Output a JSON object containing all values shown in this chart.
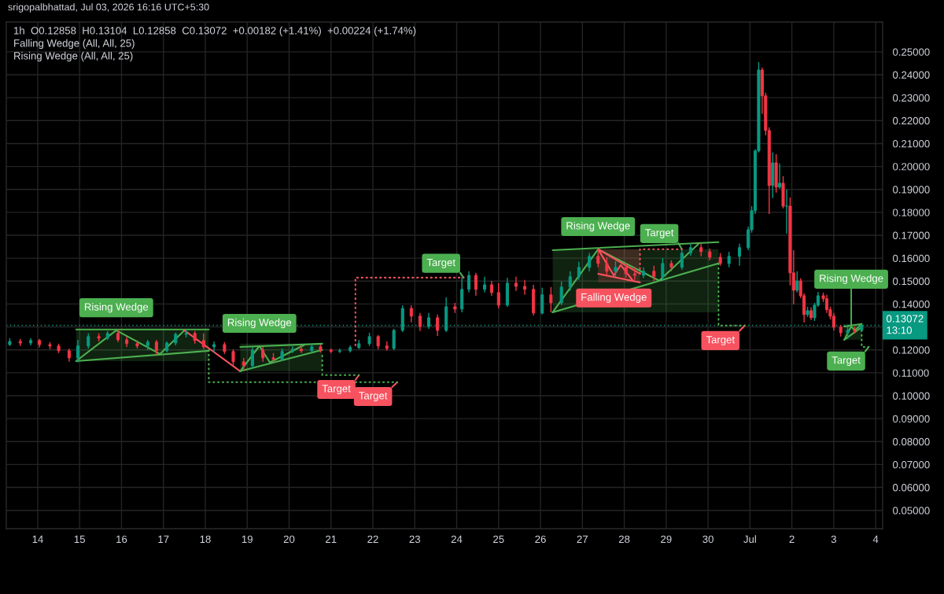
{
  "chart_data": {
    "type": "candlestick",
    "subtitle": "srigopalbhattad, Jul 03, 2026 16:16 UTC+5:30",
    "title": "1h  O0.12858  H0.13104  L0.12858  C0.13072  +0.00182 (+1.41%)  +0.00224 (+1.74%)",
    "annotations": [
      "Falling Wedge (All, All, 25)",
      "Rising Wedge (All, All, 25)",
      {
        "text": "Rising Wedge",
        "x": "2026-06-15T21:00",
        "y": 0.1285
      },
      {
        "text": "Rising Wedge",
        "x": "2026-06-19T07:00",
        "y": 0.1217
      },
      {
        "text": "Target",
        "x": "2026-06-21T14:00",
        "y": 0.1069
      },
      {
        "text": "Target",
        "x": "2026-06-22T11:00",
        "y": 0.1038
      },
      {
        "text": "Target",
        "x": "2026-06-24T02:00",
        "y": 0.1536
      },
      {
        "text": "Rising Wedge",
        "x": "2026-06-27T09:00",
        "y": 0.1639
      },
      {
        "text": "Target",
        "x": "2026-06-29T07:00",
        "y": 0.1666
      },
      {
        "text": "Falling Wedge",
        "x": "2026-06-27T18:00",
        "y": 0.1525
      },
      {
        "text": "Target",
        "x": "2026-06-30T18:00",
        "y": 0.1282
      },
      {
        "text": "Rising Wedge",
        "x": "2026-07-03T10:00",
        "y": 0.1302
      },
      {
        "text": "Target",
        "x": "2026-07-03T18:00",
        "y": 0.1193
      }
    ],
    "series": [
      {
        "x": [
          "2026-06-13T08:00",
          "2026-06-13T14:00",
          "2026-06-13T20:00",
          "2026-06-14T01:00",
          "2026-06-14T07:00",
          "2026-06-14T12:00",
          "2026-06-14T18:00",
          "2026-06-14T23:00",
          "2026-06-15T05:00",
          "2026-06-15T11:00",
          "2026-06-15T16:00",
          "2026-06-15T22:00",
          "2026-06-16T03:00",
          "2026-06-16T09:00",
          "2026-06-16T15:00",
          "2026-06-16T20:00",
          "2026-06-17T02:00",
          "2026-06-17T07:00",
          "2026-06-17T13:00",
          "2026-06-17T18:00",
          "2026-06-17T23:00",
          "2026-06-18T05:00",
          "2026-06-18T11:00",
          "2026-06-18T16:00",
          "2026-06-18T22:00",
          "2026-06-19T03:00",
          "2026-06-19T09:00",
          "2026-06-19T15:00",
          "2026-06-19T20:00",
          "2026-06-20T02:00",
          "2026-06-20T07:00",
          "2026-06-20T13:00",
          "2026-06-20T18:00",
          "2026-06-21T00:00",
          "2026-06-21T05:00",
          "2026-06-21T11:00",
          "2026-06-21T16:00",
          "2026-06-21T22:00",
          "2026-06-22T03:00",
          "2026-06-22T08:00",
          "2026-06-22T12:00",
          "2026-06-22T17:00",
          "2026-06-22T22:00",
          "2026-06-23T03:00",
          "2026-06-23T08:00",
          "2026-06-23T13:00",
          "2026-06-23T18:00",
          "2026-06-23T23:00",
          "2026-06-24T03:00",
          "2026-06-24T07:00",
          "2026-06-24T11:00",
          "2026-06-24T16:00",
          "2026-06-24T20:00",
          "2026-06-25T00:00",
          "2026-06-25T05:00",
          "2026-06-25T10:00",
          "2026-06-25T15:00",
          "2026-06-25T20:00",
          "2026-06-26T01:00",
          "2026-06-26T06:00",
          "2026-06-26T12:00",
          "2026-06-26T17:00",
          "2026-06-26T22:00",
          "2026-06-27T04:00",
          "2026-06-27T09:00",
          "2026-06-27T14:00",
          "2026-06-27T19:00",
          "2026-06-28T01:00",
          "2026-06-28T06:00",
          "2026-06-28T11:00",
          "2026-06-28T17:00",
          "2026-06-28T22:00",
          "2026-06-29T03:00",
          "2026-06-29T09:00",
          "2026-06-29T14:00",
          "2026-06-29T20:00",
          "2026-06-30T01:00",
          "2026-06-30T07:00",
          "2026-06-30T12:00",
          "2026-06-30T18:00",
          "2026-06-30T23:00",
          "2026-07-01T01:00",
          "2026-07-01T03:00",
          "2026-07-01T05:00",
          "2026-07-01T07:00",
          "2026-07-01T09:00",
          "2026-07-01T11:00",
          "2026-07-01T13:00",
          "2026-07-01T15:00",
          "2026-07-01T17:00",
          "2026-07-01T19:00",
          "2026-07-01T21:00",
          "2026-07-01T23:00",
          "2026-07-02T01:00",
          "2026-07-02T03:00",
          "2026-07-02T05:00",
          "2026-07-02T07:00",
          "2026-07-02T09:00",
          "2026-07-02T11:00",
          "2026-07-02T13:00",
          "2026-07-02T15:00",
          "2026-07-02T18:00",
          "2026-07-02T20:00",
          "2026-07-02T22:00",
          "2026-07-03T00:00",
          "2026-07-03T04:00",
          "2026-07-03T08:00",
          "2026-07-03T12:00",
          "2026-07-03T16:00"
        ],
        "ohlc": [
          [
            0.1223,
            0.1251,
            0.1217,
            0.1237
          ],
          [
            0.1237,
            0.1248,
            0.1217,
            0.123
          ],
          [
            0.123,
            0.1251,
            0.122,
            0.1241
          ],
          [
            0.1241,
            0.1248,
            0.121,
            0.1223
          ],
          [
            0.1223,
            0.1234,
            0.1203,
            0.1217
          ],
          [
            0.1217,
            0.1227,
            0.1186,
            0.1196
          ],
          [
            0.1196,
            0.1206,
            0.1148,
            0.1165
          ],
          [
            0.1165,
            0.1244,
            0.1145,
            0.1217
          ],
          [
            0.1217,
            0.1272,
            0.1206,
            0.1258
          ],
          [
            0.1258,
            0.1272,
            0.1237,
            0.1251
          ],
          [
            0.1251,
            0.1282,
            0.1244,
            0.1272
          ],
          [
            0.1272,
            0.1289,
            0.1234,
            0.1244
          ],
          [
            0.1244,
            0.1258,
            0.1213,
            0.1227
          ],
          [
            0.1227,
            0.1241,
            0.1206,
            0.1217
          ],
          [
            0.1217,
            0.1244,
            0.1199,
            0.1234
          ],
          [
            0.1234,
            0.1244,
            0.1179,
            0.1196
          ],
          [
            0.1196,
            0.1237,
            0.1189,
            0.123
          ],
          [
            0.123,
            0.1275,
            0.122,
            0.1268
          ],
          [
            0.1268,
            0.1289,
            0.1254,
            0.1272
          ],
          [
            0.1272,
            0.1282,
            0.1227,
            0.1241
          ],
          [
            0.1241,
            0.1272,
            0.1203,
            0.1213
          ],
          [
            0.1213,
            0.1237,
            0.1189,
            0.1223
          ],
          [
            0.1223,
            0.1234,
            0.1182,
            0.1193
          ],
          [
            0.1193,
            0.1203,
            0.1134,
            0.1148
          ],
          [
            0.1148,
            0.1165,
            0.1107,
            0.1131
          ],
          [
            0.1131,
            0.1213,
            0.112,
            0.1199
          ],
          [
            0.1199,
            0.1213,
            0.1148,
            0.1165
          ],
          [
            0.1165,
            0.1186,
            0.1145,
            0.1158
          ],
          [
            0.1158,
            0.1206,
            0.1151,
            0.1193
          ],
          [
            0.1193,
            0.1217,
            0.1186,
            0.1203
          ],
          [
            0.1203,
            0.122,
            0.1186,
            0.1196
          ],
          [
            0.1196,
            0.1227,
            0.1189,
            0.1213
          ],
          [
            0.1213,
            0.1223,
            0.1189,
            0.1199
          ],
          [
            0.1199,
            0.1206,
            0.1186,
            0.1193
          ],
          [
            0.1193,
            0.1206,
            0.1186,
            0.1196
          ],
          [
            0.1196,
            0.122,
            0.1189,
            0.121
          ],
          [
            0.121,
            0.1244,
            0.1203,
            0.1227
          ],
          [
            0.1227,
            0.1275,
            0.1217,
            0.1258
          ],
          [
            0.1258,
            0.1265,
            0.1203,
            0.1217
          ],
          [
            0.1217,
            0.1237,
            0.1196,
            0.1206
          ],
          [
            0.1206,
            0.1292,
            0.1199,
            0.1285
          ],
          [
            0.1285,
            0.1395,
            0.1278,
            0.1381
          ],
          [
            0.1381,
            0.1395,
            0.132,
            0.1347
          ],
          [
            0.1347,
            0.1361,
            0.1282,
            0.1302
          ],
          [
            0.1302,
            0.1361,
            0.1292,
            0.134
          ],
          [
            0.134,
            0.1354,
            0.1261,
            0.1285
          ],
          [
            0.1285,
            0.1429,
            0.1278,
            0.1388
          ],
          [
            0.1388,
            0.1405,
            0.1361,
            0.1378
          ],
          [
            0.1378,
            0.1519,
            0.1364,
            0.1464
          ],
          [
            0.1464,
            0.1543,
            0.145,
            0.1525
          ],
          [
            0.1525,
            0.1536,
            0.1436,
            0.1464
          ],
          [
            0.1464,
            0.1519,
            0.145,
            0.1484
          ],
          [
            0.1484,
            0.1501,
            0.1436,
            0.145
          ],
          [
            0.145,
            0.1491,
            0.1381,
            0.1395
          ],
          [
            0.1395,
            0.1515,
            0.1388,
            0.1491
          ],
          [
            0.1491,
            0.1519,
            0.1457,
            0.1477
          ],
          [
            0.1477,
            0.1505,
            0.144,
            0.1464
          ],
          [
            0.1464,
            0.1484,
            0.135,
            0.1361
          ],
          [
            0.1361,
            0.1471,
            0.1354,
            0.144
          ],
          [
            0.144,
            0.1474,
            0.1364,
            0.1405
          ],
          [
            0.1405,
            0.1498,
            0.1395,
            0.1474
          ],
          [
            0.1474,
            0.1543,
            0.1457,
            0.1519
          ],
          [
            0.1519,
            0.1584,
            0.1505,
            0.156
          ],
          [
            0.156,
            0.1622,
            0.1543,
            0.1608
          ],
          [
            0.1608,
            0.1639,
            0.156,
            0.1577
          ],
          [
            0.1577,
            0.1604,
            0.1525,
            0.1543
          ],
          [
            0.1543,
            0.1587,
            0.1519,
            0.156
          ],
          [
            0.156,
            0.1577,
            0.1515,
            0.1532
          ],
          [
            0.1532,
            0.156,
            0.1505,
            0.1525
          ],
          [
            0.1525,
            0.156,
            0.1512,
            0.1543
          ],
          [
            0.1543,
            0.1567,
            0.1501,
            0.1519
          ],
          [
            0.1519,
            0.1601,
            0.1505,
            0.1577
          ],
          [
            0.1577,
            0.1591,
            0.1543,
            0.156
          ],
          [
            0.156,
            0.1635,
            0.1549,
            0.1622
          ],
          [
            0.1622,
            0.1666,
            0.1611,
            0.1646
          ],
          [
            0.1646,
            0.1663,
            0.1608,
            0.1628
          ],
          [
            0.1628,
            0.1642,
            0.1591,
            0.1604
          ],
          [
            0.1604,
            0.1622,
            0.1567,
            0.1577
          ],
          [
            0.1577,
            0.1628,
            0.156,
            0.1608
          ],
          [
            0.1608,
            0.1663,
            0.1567,
            0.1646
          ],
          [
            0.1646,
            0.1738,
            0.1635,
            0.1724
          ],
          [
            0.1724,
            0.1827,
            0.1711,
            0.1807
          ],
          [
            0.1807,
            0.2075,
            0.1793,
            0.2068
          ],
          [
            0.2068,
            0.2455,
            0.2061,
            0.2421
          ],
          [
            0.2421,
            0.2431,
            0.2229,
            0.2308
          ],
          [
            0.2308,
            0.2322,
            0.2136,
            0.2157
          ],
          [
            0.2157,
            0.2171,
            0.1793,
            0.1917
          ],
          [
            0.1917,
            0.2061,
            0.1862,
            0.2016
          ],
          [
            0.2016,
            0.2054,
            0.1886,
            0.191
          ],
          [
            0.191,
            0.2013,
            0.1903,
            0.1927
          ],
          [
            0.1927,
            0.1958,
            0.1817,
            0.1827
          ],
          [
            0.1827,
            0.19,
            0.1707,
            0.1827
          ],
          [
            0.1827,
            0.1865,
            0.1481,
            0.1536
          ],
          [
            0.1536,
            0.1635,
            0.1399,
            0.146
          ],
          [
            0.146,
            0.1543,
            0.145,
            0.1501
          ],
          [
            0.1501,
            0.1512,
            0.1426,
            0.1436
          ],
          [
            0.1436,
            0.1447,
            0.132,
            0.1354
          ],
          [
            0.1354,
            0.1388,
            0.1344,
            0.1371
          ],
          [
            0.1371,
            0.1385,
            0.133,
            0.134
          ],
          [
            0.134,
            0.1405,
            0.1326,
            0.1395
          ],
          [
            0.1395,
            0.1453,
            0.1388,
            0.1436
          ],
          [
            0.1436,
            0.145,
            0.1409,
            0.1423
          ],
          [
            0.1423,
            0.144,
            0.1361,
            0.1375
          ],
          [
            0.1375,
            0.1388,
            0.1333,
            0.1347
          ],
          [
            0.1347,
            0.1361,
            0.1285,
            0.1299
          ],
          [
            0.1299,
            0.1309,
            0.1258,
            0.1275
          ],
          [
            0.1275,
            0.1302,
            0.1248,
            0.1285
          ],
          [
            0.1285,
            0.1302,
            0.1272,
            0.1282
          ],
          [
            0.12858,
            0.13104,
            0.12858,
            0.13072
          ]
        ],
        "colors": [
          "#089981",
          "#f23645",
          "#089981",
          "#f23645",
          "#f23645",
          "#f23645",
          "#f23645",
          "#089981",
          "#089981",
          "#f23645",
          "#089981",
          "#f23645",
          "#f23645",
          "#f23645",
          "#089981",
          "#f23645",
          "#089981",
          "#089981",
          "#089981",
          "#f23645",
          "#f23645",
          "#089981",
          "#f23645",
          "#f23645",
          "#f23645",
          "#089981",
          "#f23645",
          "#f23645",
          "#089981",
          "#089981",
          "#f23645",
          "#089981",
          "#f23645",
          "#f23645",
          "#089981",
          "#089981",
          "#089981",
          "#089981",
          "#f23645",
          "#f23645",
          "#089981",
          "#089981",
          "#f23645",
          "#f23645",
          "#089981",
          "#f23645",
          "#089981",
          "#f23645",
          "#089981",
          "#089981",
          "#f23645",
          "#089981",
          "#f23645",
          "#f23645",
          "#089981",
          "#f23645",
          "#f23645",
          "#f23645",
          "#089981",
          "#f23645",
          "#089981",
          "#089981",
          "#089981",
          "#089981",
          "#f23645",
          "#f23645",
          "#089981",
          "#f23645",
          "#f23645",
          "#089981",
          "#f23645",
          "#089981",
          "#f23645",
          "#089981",
          "#089981",
          "#f23645",
          "#f23645",
          "#f23645",
          "#089981",
          "#089981",
          "#089981",
          "#089981",
          "#089981",
          "#089981",
          "#f23645",
          "#f23645",
          "#f23645",
          "#089981",
          "#f23645",
          "#089981",
          "#f23645",
          "#089981",
          "#f23645",
          "#f23645",
          "#089981",
          "#f23645",
          "#f23645",
          "#089981",
          "#f23645",
          "#089981",
          "#089981",
          "#f23645",
          "#f23645",
          "#f23645",
          "#f23645",
          "#f23645",
          "#089981",
          "#f23645",
          "#089981"
        ]
      },
      {
        "type": "line",
        "color": "#4caf50",
        "x": [
          "2026-06-14T22:00",
          "2026-06-18T02:00"
        ],
        "values": [
          0.1289,
          0.1289
        ],
        "lower": [
          0.1151,
          0.1151
        ],
        "upper": [
          0.1289,
          0.1289
        ]
      },
      {
        "type": "line",
        "color": "#4caf50",
        "x": [
          "2026-06-14T22:00",
          "2026-06-18T02:00"
        ],
        "values": [
          0.1151,
          0.1196
        ]
      },
      {
        "type": "line",
        "color": "#4caf50",
        "x": [
          "2026-06-14T22:00",
          "2026-06-15T21:00",
          "2026-06-16T22:00",
          "2026-06-17T12:00"
        ],
        "values": [
          0.1151,
          0.1285,
          0.1182,
          0.1285
        ]
      },
      {
        "type": "line",
        "color": "#f7525f",
        "x": [
          "2026-06-17T12:00",
          "2026-06-18T20:00"
        ],
        "values": [
          0.1285,
          0.1107
        ]
      },
      {
        "type": "line",
        "color": "#4caf50",
        "x": [
          "2026-06-18T20:00",
          "2026-06-20T19:00"
        ],
        "values": [
          0.1213,
          0.1227
        ],
        "lower": [
          0.1107,
          0.1107
        ],
        "upper": [
          0.1227,
          0.1227
        ]
      },
      {
        "type": "line",
        "color": "#4caf50",
        "x": [
          "2026-06-18T20:00",
          "2026-06-20T19:00"
        ],
        "values": [
          0.1107,
          0.12
        ]
      },
      {
        "type": "line",
        "color": "#4caf50",
        "x": [
          "2026-06-18T20:00",
          "2026-06-19T07:00",
          "2026-06-19T13:00",
          "2026-06-20T09:00"
        ],
        "values": [
          0.1107,
          0.1217,
          0.1145,
          0.1223
        ]
      },
      {
        "type": "line",
        "color": "#4caf50",
        "line_style": "dotted",
        "x": [
          "2026-06-18T02:00",
          "2026-06-18T02:00",
          "2026-06-22T14:00"
        ],
        "values": [
          0.1199,
          0.1059,
          0.1059
        ]
      },
      {
        "type": "line",
        "color": "#f7525f",
        "x": [
          "2026-06-22T14:00",
          "2026-06-22T11:00"
        ],
        "values": [
          0.1059,
          0.1038
        ]
      },
      {
        "type": "line",
        "color": "#4caf50",
        "line_style": "dotted",
        "x": [
          "2026-06-20T19:00",
          "2026-06-20T19:00",
          "2026-06-21T16:00"
        ],
        "values": [
          0.1175,
          0.109,
          0.109
        ]
      },
      {
        "type": "line",
        "color": "#f7525f",
        "x": [
          "2026-06-21T16:00",
          "2026-06-21T14:00"
        ],
        "values": [
          0.109,
          0.1069
        ]
      },
      {
        "type": "line",
        "color": "#f7525f",
        "line_style": "dotted",
        "x": [
          "2026-06-21T14:00",
          "2026-06-21T14:00",
          "2026-06-24T04:00"
        ],
        "values": [
          0.122,
          0.1515,
          0.1515
        ]
      },
      {
        "type": "line",
        "color": "#4caf50",
        "x": [
          "2026-06-24T04:00",
          "2026-06-24T02:00"
        ],
        "values": [
          0.1515,
          0.1536
        ]
      },
      {
        "type": "line",
        "color": "#4caf50",
        "x": [
          "2026-06-26T07:00",
          "2026-06-30T06:00"
        ],
        "values": [
          0.1635,
          0.167
        ],
        "lower": [
          0.1364,
          0.1364
        ],
        "upper": [
          0.1639,
          0.1639
        ]
      },
      {
        "type": "line",
        "color": "#4caf50",
        "x": [
          "2026-06-26T07:00",
          "2026-06-30T06:00"
        ],
        "values": [
          0.1364,
          0.1577
        ]
      },
      {
        "type": "line",
        "color": "#4caf50",
        "x": [
          "2026-06-26T07:00",
          "2026-06-27T09:00",
          "2026-06-28T20:00",
          "2026-06-29T19:00"
        ],
        "values": [
          0.1364,
          0.1639,
          0.1502,
          0.1666
        ]
      },
      {
        "type": "line",
        "color": "#f7525f",
        "x": [
          "2026-06-27T09:00",
          "2026-06-28T09:00"
        ],
        "values": [
          0.1639,
          0.1532
        ],
        "lower": [
          0.1494,
          0.1494
        ],
        "upper": [
          0.1639,
          0.1639
        ]
      },
      {
        "type": "line",
        "color": "#f7525f",
        "x": [
          "2026-06-27T09:00",
          "2026-06-28T09:00"
        ],
        "values": [
          0.1532,
          0.1494
        ]
      },
      {
        "type": "line",
        "color": "#f7525f",
        "x": [
          "2026-06-27T09:00",
          "2026-06-27T18:00",
          "2026-06-27T22:00",
          "2026-06-28T05:00"
        ],
        "values": [
          0.1639,
          0.1525,
          0.157,
          0.1501
        ]
      },
      {
        "type": "line",
        "color": "#f7525f",
        "line_style": "dotted",
        "x": [
          "2026-06-28T09:00",
          "2026-06-28T09:00",
          "2026-06-29T09:00"
        ],
        "values": [
          0.1532,
          0.1639,
          0.1639
        ]
      },
      {
        "type": "line",
        "color": "#4caf50",
        "x": [
          "2026-06-29T09:00",
          "2026-06-29T07:00"
        ],
        "values": [
          0.1639,
          0.1666
        ]
      },
      {
        "type": "line",
        "color": "#4caf50",
        "line_style": "dotted",
        "x": [
          "2026-06-30T06:00",
          "2026-06-30T06:00",
          "2026-06-30T21:00"
        ],
        "values": [
          0.1577,
          0.1306,
          0.1306
        ]
      },
      {
        "type": "line",
        "color": "#f7525f",
        "x": [
          "2026-06-30T21:00",
          "2026-06-30T18:00"
        ],
        "values": [
          0.1306,
          0.1282
        ]
      },
      {
        "type": "line",
        "color": "#4caf50",
        "x": [
          "2026-07-03T06:00",
          "2026-07-03T16:00"
        ],
        "values": [
          0.1302,
          0.1313
        ],
        "lower": [
          0.1244,
          0.1244
        ],
        "upper": [
          0.1313,
          0.1313
        ]
      },
      {
        "type": "line",
        "color": "#4caf50",
        "x": [
          "2026-07-03T06:00",
          "2026-07-03T16:00"
        ],
        "values": [
          0.1244,
          0.1299
        ]
      },
      {
        "type": "line",
        "color": "#4caf50",
        "x": [
          "2026-07-03T06:00",
          "2026-07-03T10:00",
          "2026-07-03T12:00",
          "2026-07-03T16:00"
        ],
        "values": [
          0.1244,
          0.1302,
          0.1285,
          0.1313
        ]
      },
      {
        "type": "line",
        "color": "#4caf50",
        "line_style": "dotted",
        "x": [
          "2026-07-03T16:00",
          "2026-07-03T16:00",
          "2026-07-03T20:00"
        ],
        "values": [
          0.1285,
          0.1213,
          0.1213
        ]
      },
      {
        "type": "line",
        "color": "#4caf50",
        "x": [
          "2026-07-03T20:00",
          "2026-07-03T18:00"
        ],
        "values": [
          0.1213,
          0.1193
        ]
      }
    ],
    "ref_lines": [
      {
        "axis": "y",
        "value": 0.13072,
        "label": "0.13072\n13:10",
        "color": "#089981",
        "line_style": "dotted"
      }
    ],
    "xlim": [
      "2026-06-13T06:00",
      "2026-07-04T04:00"
    ],
    "xticks": [
      {
        "value": "2026-06-14",
        "label": "14"
      },
      {
        "value": "2026-06-15",
        "label": "15"
      },
      {
        "value": "2026-06-16",
        "label": "16"
      },
      {
        "value": "2026-06-17",
        "label": "17"
      },
      {
        "value": "2026-06-18",
        "label": "18"
      },
      {
        "value": "2026-06-19",
        "label": "19"
      },
      {
        "value": "2026-06-20",
        "label": "20"
      },
      {
        "value": "2026-06-21",
        "label": "21"
      },
      {
        "value": "2026-06-22",
        "label": "22"
      },
      {
        "value": "2026-06-23",
        "label": "23"
      },
      {
        "value": "2026-06-24",
        "label": "24"
      },
      {
        "value": "2026-06-25",
        "label": "25"
      },
      {
        "value": "2026-06-26",
        "label": "26"
      },
      {
        "value": "2026-06-27",
        "label": "27"
      },
      {
        "value": "2026-06-28",
        "label": "28"
      },
      {
        "value": "2026-06-29",
        "label": "29"
      },
      {
        "value": "2026-06-30",
        "label": "30"
      },
      {
        "value": "2026-07-01",
        "label": "Jul"
      },
      {
        "value": "2026-07-02",
        "label": "2"
      },
      {
        "value": "2026-07-03",
        "label": "3"
      },
      {
        "value": "2026-07-04",
        "label": "4"
      }
    ],
    "ylim": [
      0.042,
      0.263
    ],
    "yticks": [
      {
        "value": 0.05,
        "label": "0.05000"
      },
      {
        "value": 0.06,
        "label": "0.06000"
      },
      {
        "value": 0.07,
        "label": "0.07000"
      },
      {
        "value": 0.08,
        "label": "0.08000"
      },
      {
        "value": 0.09,
        "label": "0.09000"
      },
      {
        "value": 0.1,
        "label": "0.10000"
      },
      {
        "value": 0.11,
        "label": "0.11000"
      },
      {
        "value": 0.12,
        "label": "0.12000"
      },
      {
        "value": 0.13,
        "label": null
      },
      {
        "value": 0.14,
        "label": "0.14000"
      },
      {
        "value": 0.15,
        "label": "0.15000"
      },
      {
        "value": 0.16,
        "label": "0.16000"
      },
      {
        "value": 0.17,
        "label": "0.17000"
      },
      {
        "value": 0.18,
        "label": "0.18000"
      },
      {
        "value": 0.19,
        "label": "0.19000"
      },
      {
        "value": 0.2,
        "label": "0.20000"
      },
      {
        "value": 0.21,
        "label": "0.21000"
      },
      {
        "value": 0.22,
        "label": "0.22000"
      },
      {
        "value": 0.23,
        "label": "0.23000"
      },
      {
        "value": 0.24,
        "label": "0.24000"
      },
      {
        "value": 0.25,
        "label": "0.25000"
      }
    ],
    "grid": true
  }
}
